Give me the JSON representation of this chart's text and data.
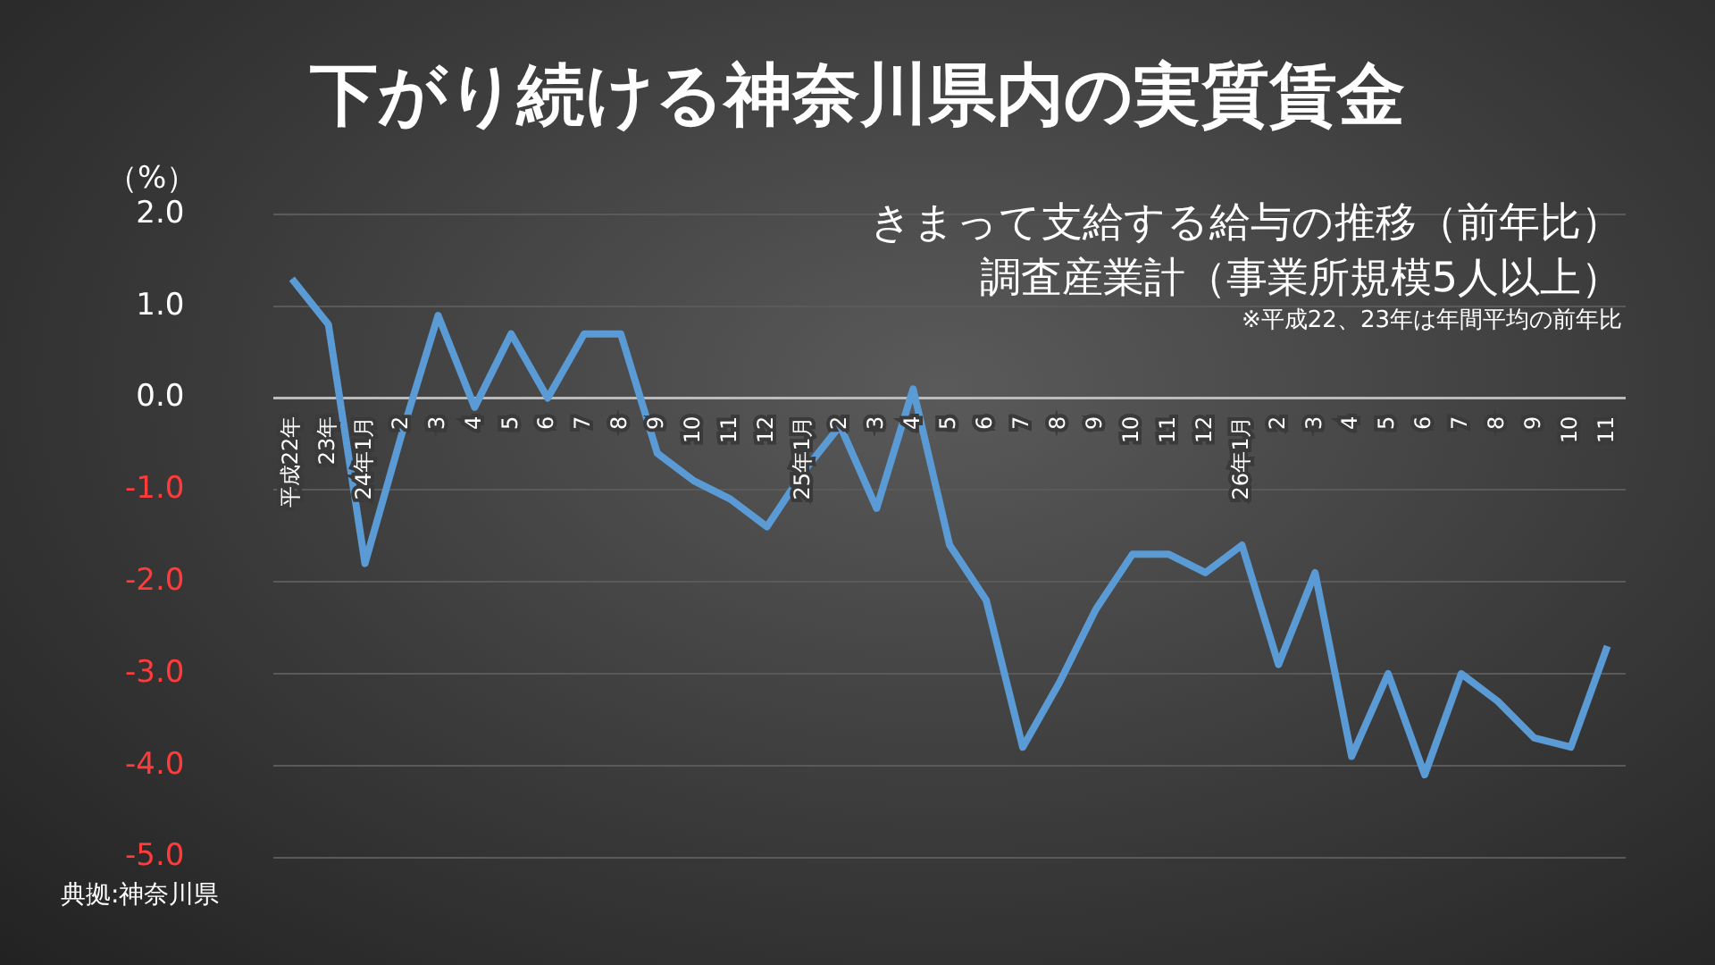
{
  "chart_data": {
    "type": "line",
    "title": "下がり続ける神奈川県内の実質賃金",
    "subtitle": "きまって支給する給与の推移（前年比）",
    "ylabel": "（%）",
    "annotations": [
      "調査産業計（事業所規模5人以上）",
      "※平成22、23年は年間平均の前年比",
      "典拠:神奈川県"
    ],
    "categories": [
      "平成22年",
      "23年",
      "24年1月",
      "2",
      "3",
      "4",
      "5",
      "6",
      "7",
      "8",
      "9",
      "10",
      "11",
      "12",
      "25年1月",
      "2",
      "3",
      "4",
      "5",
      "6",
      "7",
      "8",
      "9",
      "10",
      "11",
      "12",
      "26年1月",
      "2",
      "3",
      "4",
      "5",
      "6",
      "7",
      "8",
      "9",
      "10",
      "11"
    ],
    "series": [
      {
        "color": "#5b9bd5",
        "values": [
          1.3,
          0.8,
          -1.8,
          -0.4,
          0.9,
          -0.1,
          0.7,
          0.0,
          0.7,
          0.7,
          -0.6,
          -0.9,
          -1.1,
          -1.4,
          -0.8,
          -0.3,
          -1.2,
          0.1,
          -1.6,
          -2.2,
          -3.8,
          -3.1,
          -2.3,
          -1.7,
          -1.7,
          -1.9,
          -1.6,
          -2.9,
          -1.9,
          -3.9,
          -3.0,
          -4.1,
          -3.0,
          -3.3,
          -3.7,
          -3.8,
          -2.7
        ]
      }
    ],
    "ylim": [
      -5,
      2
    ],
    "yticks": [
      {
        "value": -5,
        "label": "-5.0"
      },
      {
        "value": -4,
        "label": "-4.0"
      },
      {
        "value": -3,
        "label": "-3.0"
      },
      {
        "value": -2,
        "label": "-2.0"
      },
      {
        "value": -1,
        "label": "-1.0"
      },
      {
        "value": 0,
        "label": "0.0"
      },
      {
        "value": 1,
        "label": "1.0"
      },
      {
        "value": 2,
        "label": "2.0"
      }
    ],
    "grid": "y",
    "legend": false,
    "marker": "none",
    "line_style": "solid"
  }
}
